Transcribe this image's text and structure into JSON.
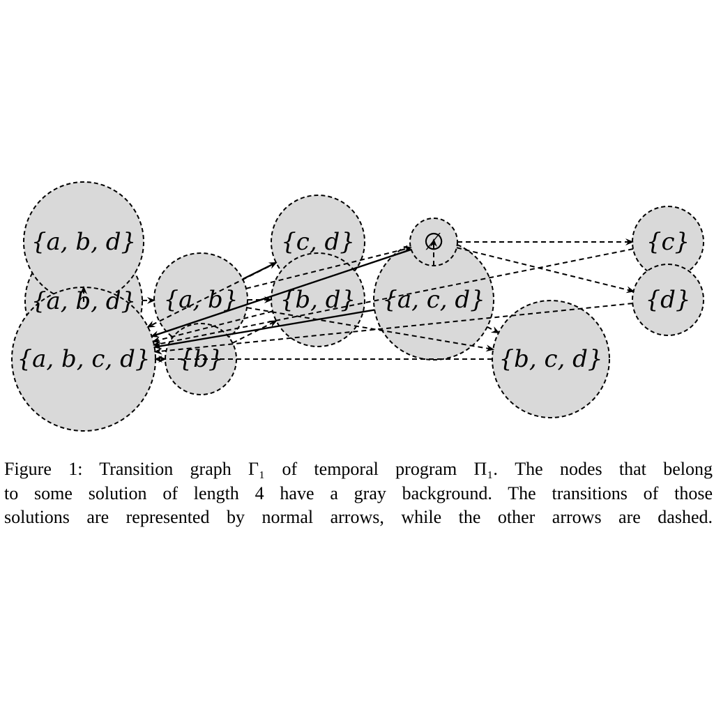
{
  "figure": {
    "nodes": [
      {
        "id": "abd_hidden",
        "label": "{a, b, d}"
      },
      {
        "id": "abd",
        "label": "{a, b, d}"
      },
      {
        "id": "abcd",
        "label": "{a, b, c, d}"
      },
      {
        "id": "ab",
        "label": "{a, b}"
      },
      {
        "id": "b",
        "label": "{b}"
      },
      {
        "id": "cd",
        "label": "{c, d}"
      },
      {
        "id": "bd",
        "label": "{b, d}"
      },
      {
        "id": "empty",
        "label": "∅"
      },
      {
        "id": "acd",
        "label": "{a, c, d}"
      },
      {
        "id": "bcd",
        "label": "{b, c, d}"
      },
      {
        "id": "c",
        "label": "{c}"
      },
      {
        "id": "d",
        "label": "{d}"
      }
    ],
    "edges": [
      {
        "from": "abd",
        "to": "abcd",
        "style": "dashed"
      },
      {
        "from": "abd_hidden",
        "to": "ab",
        "style": "dashed"
      },
      {
        "from": "ab",
        "to": "cd",
        "style": "solid"
      },
      {
        "from": "ab",
        "to": "bd",
        "style": "dashed"
      },
      {
        "from": "ab",
        "to": "empty",
        "style": "dashed"
      },
      {
        "from": "ab",
        "to": "bcd",
        "style": "dashed"
      },
      {
        "from": "empty",
        "to": "c",
        "style": "dashed"
      },
      {
        "from": "empty",
        "to": "d",
        "style": "dashed"
      },
      {
        "from": "empty",
        "to": "abcd",
        "style": "solid"
      },
      {
        "from": "empty",
        "to": "acd",
        "style": "dashed"
      },
      {
        "from": "c",
        "to": "abcd",
        "style": "dashed"
      },
      {
        "from": "d",
        "to": "abcd",
        "style": "dashed"
      },
      {
        "from": "bcd",
        "to": "abcd",
        "style": "dashed"
      },
      {
        "from": "acd",
        "to": "abcd",
        "style": "solid"
      },
      {
        "from": "acd",
        "to": "bcd",
        "style": "dashed"
      },
      {
        "from": "cd",
        "to": "abcd",
        "style": "dashed"
      },
      {
        "from": "bd",
        "to": "abcd",
        "style": "dashed"
      },
      {
        "from": "b",
        "to": "bd",
        "style": "dashed"
      },
      {
        "from": "abcd",
        "to": "b",
        "style": "dashed"
      }
    ]
  },
  "caption": {
    "lines": [
      "Figure 1: Transition graph Γ₁ of temporal program Π₁. The nodes that belong",
      "to some solution of length 4 have a gray background. The transitions of those",
      "solutions are represented by normal arrows, while the other arrows are dashed."
    ]
  }
}
